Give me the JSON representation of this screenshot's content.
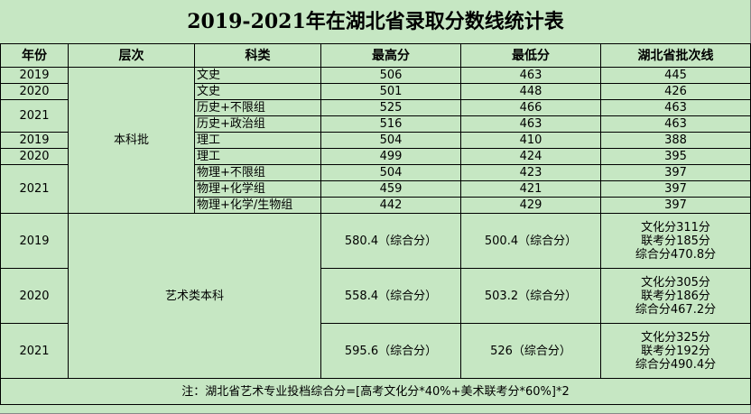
{
  "title": "2019-2021年在湖北省录取分数线统计表",
  "headers": [
    "年份",
    "层次",
    "科类",
    "最高分",
    "最低分",
    "湖北省批次线"
  ],
  "regular_level": "本科批",
  "regular_years": [
    "2019",
    "2020",
    "2021",
    "2019",
    "2020",
    "2021"
  ],
  "regular_rows": [
    {
      "subject": "文史",
      "max": "506",
      "min": "463",
      "line": "445"
    },
    {
      "subject": "文史",
      "max": "501",
      "min": "448",
      "line": "426"
    },
    {
      "subject": "历史+不限组",
      "max": "525",
      "min": "466",
      "line": "463"
    },
    {
      "subject": "历史+政治组",
      "max": "516",
      "min": "463",
      "line": "463"
    },
    {
      "subject": "理工",
      "max": "504",
      "min": "410",
      "line": "388"
    },
    {
      "subject": "理工",
      "max": "499",
      "min": "424",
      "line": "395"
    },
    {
      "subject": "物理+不限组",
      "max": "504",
      "min": "423",
      "line": "397"
    },
    {
      "subject": "物理+化学组",
      "max": "459",
      "min": "421",
      "line": "397"
    },
    {
      "subject": "物理+化学/生物组",
      "max": "442",
      "min": "429",
      "line": "397"
    }
  ],
  "art_level": "艺术类本科",
  "art_rows": [
    {
      "year": "2019",
      "max": "580.4（综合分）",
      "min": "500.4（综合分）",
      "line": [
        "文化分311分",
        "联考分185分",
        "综合分470.8分"
      ]
    },
    {
      "year": "2020",
      "max": "558.4（综合分）",
      "min": "503.2（综合分）",
      "line": [
        "文化分305分",
        "联考分186分",
        "综合分467.2分"
      ]
    },
    {
      "year": "2021",
      "max": "595.6（综合分）",
      "min": "526（综合分）",
      "line": [
        "文化分325分",
        "联考分192分",
        "综合分490.4分"
      ]
    }
  ],
  "note": "注：湖北省艺术专业投档综合分=[高考文化分*40%+美术联考分*60%]*2"
}
